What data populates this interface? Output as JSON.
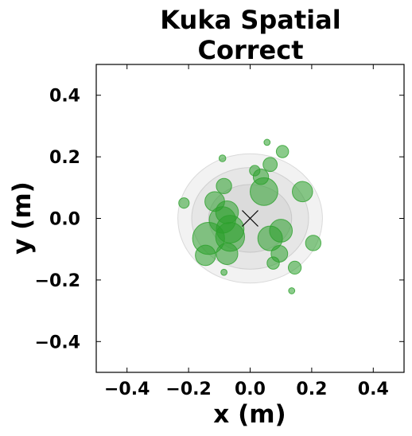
{
  "chart_data": {
    "type": "scatter",
    "title_lines": [
      "Kuka Spatial",
      "Correct"
    ],
    "xlabel": "x (m)",
    "ylabel": "y (m)",
    "xlim": [
      -0.5,
      0.5
    ],
    "ylim": [
      -0.5,
      0.5
    ],
    "xticks": [
      -0.4,
      -0.2,
      0.0,
      0.2,
      0.4
    ],
    "xtick_labels": [
      "−0.4",
      "−0.2",
      "0.0",
      "0.2",
      "0.4"
    ],
    "yticks": [
      -0.4,
      -0.2,
      0.0,
      0.2,
      0.4
    ],
    "ytick_labels": [
      "−0.4",
      "−0.2",
      "0.0",
      "0.2",
      "0.4"
    ],
    "grid": false,
    "target": {
      "x": 0.0,
      "y": 0.0,
      "marker": "x"
    },
    "point_color": "#2ca02c",
    "ellipse_color": "#808080",
    "ellipses": [
      {
        "cx": 0.0,
        "cy": 0.0,
        "rx": 0.235,
        "ry": 0.21
      },
      {
        "cx": 0.0,
        "cy": 0.0,
        "rx": 0.19,
        "ry": 0.165
      },
      {
        "cx": 0.0,
        "cy": 0.0,
        "rx": 0.135,
        "ry": 0.11
      }
    ],
    "points": [
      {
        "x": -0.215,
        "y": 0.05,
        "r": 0.017
      },
      {
        "x": -0.09,
        "y": 0.195,
        "r": 0.011
      },
      {
        "x": 0.055,
        "y": 0.247,
        "r": 0.01
      },
      {
        "x": 0.105,
        "y": 0.217,
        "r": 0.02
      },
      {
        "x": 0.065,
        "y": 0.175,
        "r": 0.023
      },
      {
        "x": 0.015,
        "y": 0.155,
        "r": 0.017
      },
      {
        "x": 0.035,
        "y": 0.135,
        "r": 0.025
      },
      {
        "x": -0.085,
        "y": 0.105,
        "r": 0.025
      },
      {
        "x": 0.045,
        "y": 0.087,
        "r": 0.045
      },
      {
        "x": 0.17,
        "y": 0.087,
        "r": 0.033
      },
      {
        "x": -0.115,
        "y": 0.055,
        "r": 0.032
      },
      {
        "x": -0.075,
        "y": 0.02,
        "r": 0.037
      },
      {
        "x": -0.09,
        "y": -0.005,
        "r": 0.043
      },
      {
        "x": -0.065,
        "y": -0.035,
        "r": 0.045
      },
      {
        "x": -0.065,
        "y": -0.06,
        "r": 0.047
      },
      {
        "x": -0.135,
        "y": -0.065,
        "r": 0.052
      },
      {
        "x": 0.1,
        "y": -0.04,
        "r": 0.037
      },
      {
        "x": 0.065,
        "y": -0.065,
        "r": 0.04
      },
      {
        "x": 0.205,
        "y": -0.08,
        "r": 0.025
      },
      {
        "x": -0.145,
        "y": -0.12,
        "r": 0.033
      },
      {
        "x": -0.075,
        "y": -0.115,
        "r": 0.035
      },
      {
        "x": 0.095,
        "y": -0.115,
        "r": 0.027
      },
      {
        "x": 0.075,
        "y": -0.145,
        "r": 0.02
      },
      {
        "x": 0.145,
        "y": -0.16,
        "r": 0.021
      },
      {
        "x": -0.085,
        "y": -0.175,
        "r": 0.01
      },
      {
        "x": 0.135,
        "y": -0.235,
        "r": 0.01
      }
    ]
  }
}
